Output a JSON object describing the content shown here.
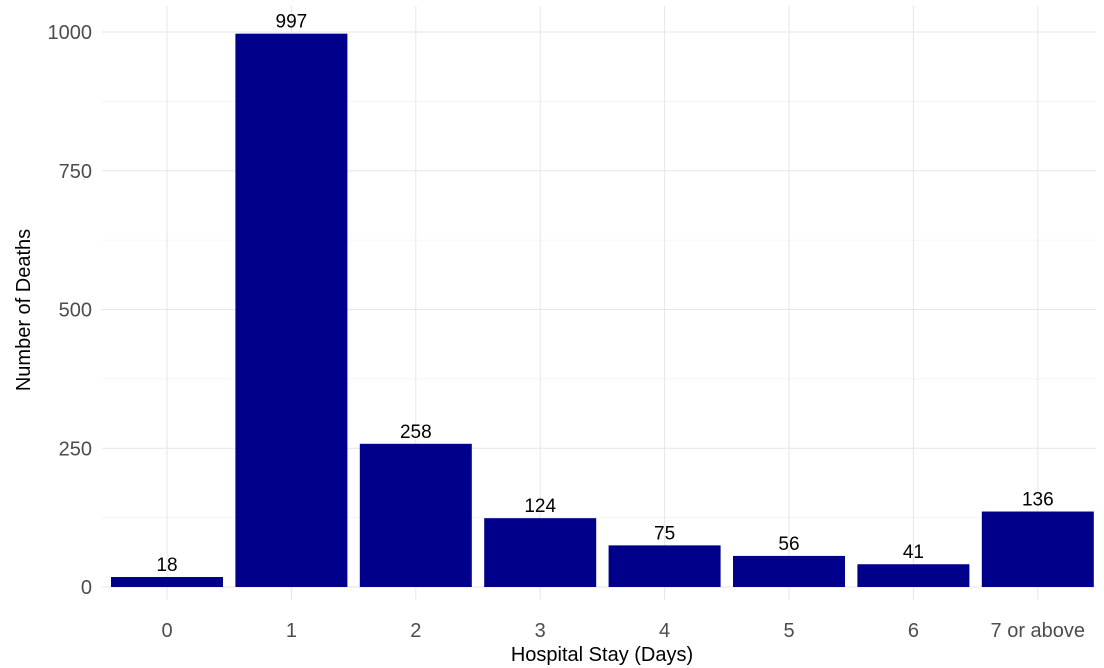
{
  "chart_data": {
    "type": "bar",
    "categories": [
      "0",
      "1",
      "2",
      "3",
      "4",
      "5",
      "6",
      "7 or above"
    ],
    "values": [
      18,
      997,
      258,
      124,
      75,
      56,
      41,
      136
    ],
    "data_labels": [
      "18",
      "997",
      "258",
      "124",
      "75",
      "56",
      "41",
      "136"
    ],
    "xlabel": "Hospital Stay (Days)",
    "ylabel": "Number of Deaths",
    "ylim": [
      0,
      1000
    ],
    "y_ticks": [
      0,
      250,
      500,
      750,
      1000
    ],
    "y_tick_labels": [
      "0",
      "250",
      "500",
      "750",
      "1000"
    ],
    "grid": true,
    "legend": "none",
    "colors": {
      "bar": "#00008b",
      "grid_major": "#e6e6e6",
      "grid_minor": "#f2f2f2",
      "tick_text": "#4d4d4d"
    }
  }
}
